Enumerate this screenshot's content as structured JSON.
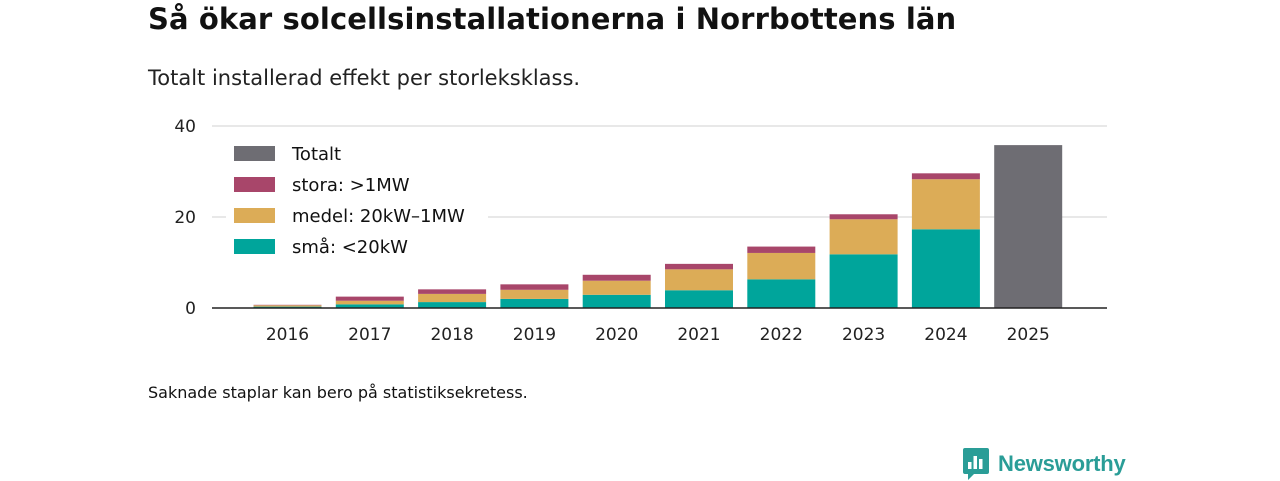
{
  "header": {
    "title": "Så ökar solcellsinstallationerna i Norrbottens län",
    "subtitle": "Totalt installerad effekt per storleksklass."
  },
  "footer": {
    "note": "Saknade staplar kan bero på statistiksekretess.",
    "brand": "Newsworthy"
  },
  "colors": {
    "total": "#6e6d73",
    "stora": "#a8466a",
    "medel": "#dcac57",
    "sma": "#00a59b",
    "grid": "#d9d9d9",
    "axis": "#222222",
    "brand": "#2a9d97"
  },
  "chart_data": {
    "type": "bar",
    "stacked": true,
    "title": "Så ökar solcellsinstallationerna i Norrbottens län",
    "subtitle": "Totalt installerad effekt per storleksklass.",
    "xlabel": "",
    "ylabel": "",
    "ylim": [
      0,
      40
    ],
    "yticks": [
      0,
      20,
      40
    ],
    "grid": true,
    "legend_position": "top-left",
    "categories": [
      "2016",
      "2017",
      "2018",
      "2019",
      "2020",
      "2021",
      "2022",
      "2023",
      "2024",
      "2025"
    ],
    "series": [
      {
        "name": "små: <20kW",
        "key": "sma",
        "values": [
          0.3,
          0.8,
          1.3,
          2.0,
          2.9,
          3.9,
          6.3,
          11.8,
          17.3,
          null
        ]
      },
      {
        "name": "medel: 20kW–1MW",
        "key": "medel",
        "values": [
          0.3,
          0.8,
          1.8,
          2.0,
          3.1,
          4.6,
          5.8,
          7.7,
          11.0,
          null
        ]
      },
      {
        "name": "stora: >1MW",
        "key": "stora",
        "values": [
          0.1,
          0.9,
          1.0,
          1.2,
          1.3,
          1.2,
          1.4,
          1.1,
          1.3,
          null
        ]
      },
      {
        "name": "Totalt",
        "key": "total",
        "values": [
          null,
          null,
          null,
          null,
          null,
          null,
          null,
          null,
          null,
          35.8
        ]
      }
    ],
    "legend": [
      {
        "name": "Totalt",
        "key": "total"
      },
      {
        "name": "stora: >1MW",
        "key": "stora"
      },
      {
        "name": "medel: 20kW–1MW",
        "key": "medel"
      },
      {
        "name": "små: <20kW",
        "key": "sma"
      }
    ]
  }
}
